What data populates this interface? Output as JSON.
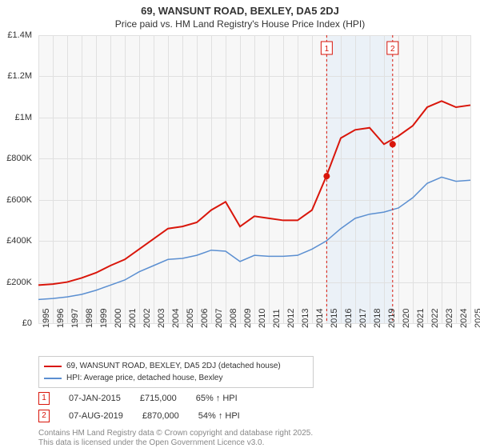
{
  "title": "69, WANSUNT ROAD, BEXLEY, DA5 2DJ",
  "subtitle": "Price paid vs. HM Land Registry's House Price Index (HPI)",
  "chart": {
    "type": "line",
    "background_color": "#f7f7f7",
    "grid_color": "#e0e0e0",
    "x_years": [
      1995,
      1996,
      1997,
      1998,
      1999,
      2000,
      2001,
      2002,
      2003,
      2004,
      2005,
      2006,
      2007,
      2008,
      2009,
      2010,
      2011,
      2012,
      2013,
      2014,
      2015,
      2016,
      2017,
      2018,
      2019,
      2020,
      2021,
      2022,
      2023,
      2024,
      2025
    ],
    "y_ticks": [
      0,
      200000,
      400000,
      600000,
      800000,
      1000000,
      1200000,
      1400000
    ],
    "y_tick_labels": [
      "£0",
      "£200K",
      "£400K",
      "£600K",
      "£800K",
      "£1M",
      "£1.2M",
      "£1.4M"
    ],
    "ylim": [
      0,
      1400000
    ],
    "series": [
      {
        "name": "69, WANSUNT ROAD, BEXLEY, DA5 2DJ (detached house)",
        "color": "#d9160b",
        "width": 2,
        "values": [
          185000,
          190000,
          200000,
          220000,
          245000,
          280000,
          310000,
          360000,
          410000,
          460000,
          470000,
          490000,
          550000,
          590000,
          470000,
          520000,
          510000,
          500000,
          500000,
          550000,
          715000,
          900000,
          940000,
          950000,
          870000,
          910000,
          960000,
          1050000,
          1080000,
          1050000,
          1060000
        ]
      },
      {
        "name": "HPI: Average price, detached house, Bexley",
        "color": "#5b8fd1",
        "width": 1.5,
        "values": [
          115000,
          120000,
          128000,
          140000,
          160000,
          185000,
          210000,
          250000,
          280000,
          310000,
          315000,
          330000,
          355000,
          350000,
          300000,
          330000,
          325000,
          325000,
          330000,
          360000,
          400000,
          460000,
          510000,
          530000,
          540000,
          560000,
          610000,
          680000,
          710000,
          690000,
          695000
        ]
      }
    ],
    "sales": [
      {
        "marker": "1",
        "year": 2015.02,
        "price": 715000,
        "date": "07-JAN-2015",
        "vs_hpi": "65% ↑ HPI"
      },
      {
        "marker": "2",
        "year": 2019.6,
        "price": 870000,
        "date": "07-AUG-2019",
        "vs_hpi": "54% ↑ HPI"
      }
    ],
    "shade_start_year": 2015.02,
    "shade_end_year": 2019.6,
    "title_fontsize": 13,
    "label_fontsize": 11
  },
  "legend": {
    "series1_label": "69, WANSUNT ROAD, BEXLEY, DA5 2DJ (detached house)",
    "series2_label": "HPI: Average price, detached house, Bexley"
  },
  "footnote_line1": "Contains HM Land Registry data © Crown copyright and database right 2025.",
  "footnote_line2": "This data is licensed under the Open Government Licence v3.0."
}
